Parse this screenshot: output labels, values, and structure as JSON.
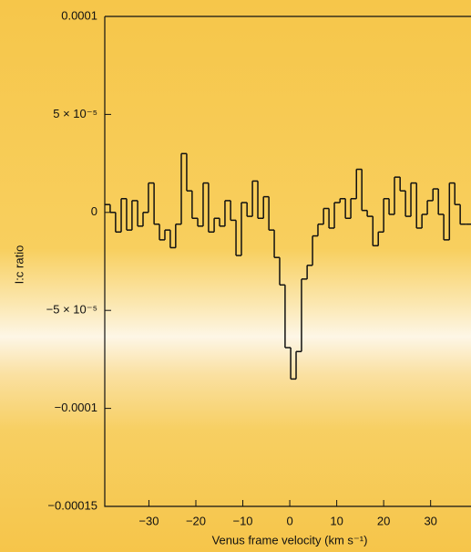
{
  "chart_data": {
    "type": "step",
    "xlabel": "Venus frame velocity (km s⁻¹)",
    "ylabel": "I:c ratio",
    "color": "#111111",
    "x": [
      -38.8,
      -37.7,
      -36.5,
      -35.3,
      -34.2,
      -33.0,
      -31.8,
      -30.7,
      -29.5,
      -28.3,
      -27.2,
      -26.0,
      -24.9,
      -23.7,
      -22.5,
      -21.4,
      -20.2,
      -19.0,
      -17.9,
      -16.7,
      -15.5,
      -14.4,
      -13.2,
      -12.0,
      -10.9,
      -9.7,
      -8.5,
      -7.4,
      -6.2,
      -5.0,
      -3.9,
      -2.7,
      -1.6,
      -0.4,
      0.8,
      1.9,
      3.1,
      4.3,
      5.4,
      6.6,
      7.8,
      8.9,
      10.1,
      11.3,
      12.4,
      13.6,
      14.8,
      15.9,
      17.1,
      18.3,
      19.4,
      20.6,
      21.7,
      22.9,
      24.1,
      25.2,
      26.4,
      27.6,
      28.7,
      29.9,
      31.1,
      32.2,
      33.4,
      34.6,
      35.7,
      36.9,
      38.1
    ],
    "values": [
      4e-06,
      0,
      -1e-05,
      7e-06,
      -9e-06,
      6e-06,
      -7e-06,
      0,
      1.5e-05,
      -6e-06,
      -1.4e-05,
      -9e-06,
      -1.8e-05,
      -6e-06,
      3e-05,
      1.1e-05,
      -3e-06,
      -7e-06,
      1.5e-05,
      -1e-05,
      -3e-06,
      -7e-06,
      6e-06,
      -4e-06,
      -2.2e-05,
      5e-06,
      -2e-06,
      1.6e-05,
      -3e-06,
      8e-06,
      -9e-06,
      -2.3e-05,
      -3.7e-05,
      -6.9e-05,
      -8.5e-05,
      -7.1e-05,
      -3.4e-05,
      -2.7e-05,
      -1.2e-05,
      -6e-06,
      2e-06,
      -8e-06,
      5e-06,
      7e-06,
      -3e-06,
      7e-06,
      2.2e-05,
      1e-06,
      -2e-06,
      -1.7e-05,
      -1e-05,
      7e-06,
      -1e-06,
      1.8e-05,
      1.1e-05,
      -2e-06,
      1.5e-05,
      -8e-06,
      -1e-06,
      6e-06,
      1.2e-05,
      -1e-06,
      -1.4e-05,
      1.5e-05,
      4e-06,
      -6e-06,
      -6e-06
    ],
    "xlim": [
      -39.4,
      38.6
    ],
    "xticks": [
      {
        "value": -30,
        "label": "−30"
      },
      {
        "value": -20,
        "label": "−20"
      },
      {
        "value": -10,
        "label": "−10"
      },
      0,
      10,
      20,
      30
    ],
    "ylim": [
      -0.00015,
      0.0001
    ],
    "yticks": [
      0.0001,
      {
        "value": 5e-05,
        "label": "5 × 10⁻⁵"
      },
      0,
      {
        "value": -5e-05,
        "label": "−5 × 10⁻⁵"
      },
      {
        "value": -0.0001,
        "label": "−0.0001"
      },
      {
        "value": -0.00015,
        "label": "−0.00015"
      }
    ]
  }
}
